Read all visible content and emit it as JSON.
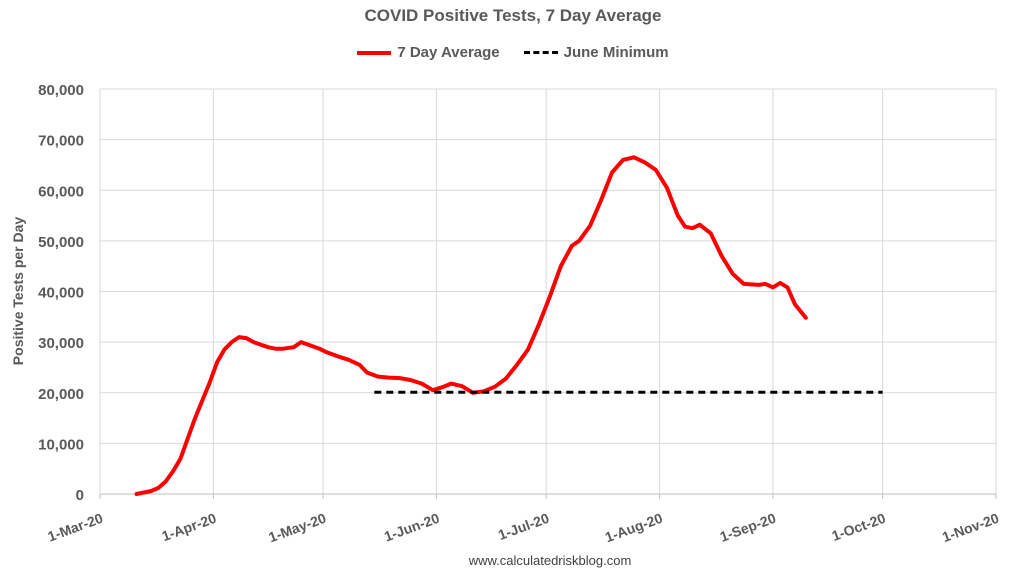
{
  "chart_data": {
    "type": "line",
    "title": "COVID Positive Tests, 7 Day Average",
    "ylabel": "Positive Tests per Day",
    "xlabel": "",
    "ylim": [
      0,
      80000
    ],
    "xlim": [
      "2020-03-01",
      "2020-11-01"
    ],
    "y_ticks": [
      0,
      10000,
      20000,
      30000,
      40000,
      50000,
      60000,
      70000,
      80000
    ],
    "y_tick_labels": [
      "0",
      "10,000",
      "20,000",
      "30,000",
      "40,000",
      "50,000",
      "60,000",
      "70,000",
      "80,000"
    ],
    "x_ticks": [
      "2020-03-01",
      "2020-04-01",
      "2020-05-01",
      "2020-06-01",
      "2020-07-01",
      "2020-08-01",
      "2020-09-01",
      "2020-10-01",
      "2020-11-01"
    ],
    "x_tick_labels": [
      "1-Mar-20",
      "1-Apr-20",
      "1-May-20",
      "1-Jun-20",
      "1-Jul-20",
      "1-Aug-20",
      "1-Sep-20",
      "1-Oct-20",
      "1-Nov-20"
    ],
    "grid": true,
    "legend_position": "top-center",
    "series": [
      {
        "name": "7 Day Average",
        "color": "#ff0000",
        "style": "solid",
        "points": [
          [
            "2020-03-11",
            0
          ],
          [
            "2020-03-13",
            300
          ],
          [
            "2020-03-15",
            600
          ],
          [
            "2020-03-17",
            1200
          ],
          [
            "2020-03-19",
            2500
          ],
          [
            "2020-03-21",
            4500
          ],
          [
            "2020-03-23",
            7000
          ],
          [
            "2020-03-25",
            11000
          ],
          [
            "2020-03-27",
            15000
          ],
          [
            "2020-03-29",
            18500
          ],
          [
            "2020-03-31",
            22000
          ],
          [
            "2020-04-02",
            26000
          ],
          [
            "2020-04-04",
            28500
          ],
          [
            "2020-04-06",
            30000
          ],
          [
            "2020-04-08",
            31000
          ],
          [
            "2020-04-10",
            30800
          ],
          [
            "2020-04-12",
            30000
          ],
          [
            "2020-04-14",
            29500
          ],
          [
            "2020-04-16",
            29000
          ],
          [
            "2020-04-18",
            28700
          ],
          [
            "2020-04-20",
            28700
          ],
          [
            "2020-04-23",
            29000
          ],
          [
            "2020-04-25",
            30000
          ],
          [
            "2020-04-27",
            29500
          ],
          [
            "2020-04-30",
            28700
          ],
          [
            "2020-05-02",
            28000
          ],
          [
            "2020-05-05",
            27200
          ],
          [
            "2020-05-08",
            26500
          ],
          [
            "2020-05-11",
            25500
          ],
          [
            "2020-05-13",
            24000
          ],
          [
            "2020-05-16",
            23200
          ],
          [
            "2020-05-19",
            23000
          ],
          [
            "2020-05-22",
            22900
          ],
          [
            "2020-05-25",
            22500
          ],
          [
            "2020-05-28",
            21800
          ],
          [
            "2020-05-31",
            20500
          ],
          [
            "2020-06-03",
            21200
          ],
          [
            "2020-06-05",
            21800
          ],
          [
            "2020-06-08",
            21300
          ],
          [
            "2020-06-11",
            20000
          ],
          [
            "2020-06-14",
            20300
          ],
          [
            "2020-06-17",
            21200
          ],
          [
            "2020-06-20",
            22800
          ],
          [
            "2020-06-23",
            25500
          ],
          [
            "2020-06-26",
            28500
          ],
          [
            "2020-06-29",
            33500
          ],
          [
            "2020-07-02",
            39000
          ],
          [
            "2020-07-05",
            45000
          ],
          [
            "2020-07-08",
            49000
          ],
          [
            "2020-07-10",
            50000
          ],
          [
            "2020-07-13",
            53000
          ],
          [
            "2020-07-16",
            58000
          ],
          [
            "2020-07-19",
            63500
          ],
          [
            "2020-07-22",
            66000
          ],
          [
            "2020-07-25",
            66500
          ],
          [
            "2020-07-28",
            65500
          ],
          [
            "2020-07-31",
            64000
          ],
          [
            "2020-08-03",
            60500
          ],
          [
            "2020-08-06",
            55000
          ],
          [
            "2020-08-08",
            52800
          ],
          [
            "2020-08-10",
            52500
          ],
          [
            "2020-08-12",
            53200
          ],
          [
            "2020-08-15",
            51500
          ],
          [
            "2020-08-18",
            47000
          ],
          [
            "2020-08-21",
            43500
          ],
          [
            "2020-08-24",
            41500
          ],
          [
            "2020-08-28",
            41300
          ],
          [
            "2020-08-30",
            41500
          ],
          [
            "2020-09-01",
            40800
          ],
          [
            "2020-09-03",
            41700
          ],
          [
            "2020-09-05",
            40800
          ],
          [
            "2020-09-07",
            37500
          ],
          [
            "2020-09-10",
            34800
          ]
        ]
      },
      {
        "name": "June Minimum",
        "color": "#000000",
        "style": "dashed",
        "points": [
          [
            "2020-05-15",
            20100
          ],
          [
            "2020-10-01",
            20100
          ]
        ]
      }
    ]
  },
  "footer": {
    "source": "www.calculatedriskblog.com"
  }
}
